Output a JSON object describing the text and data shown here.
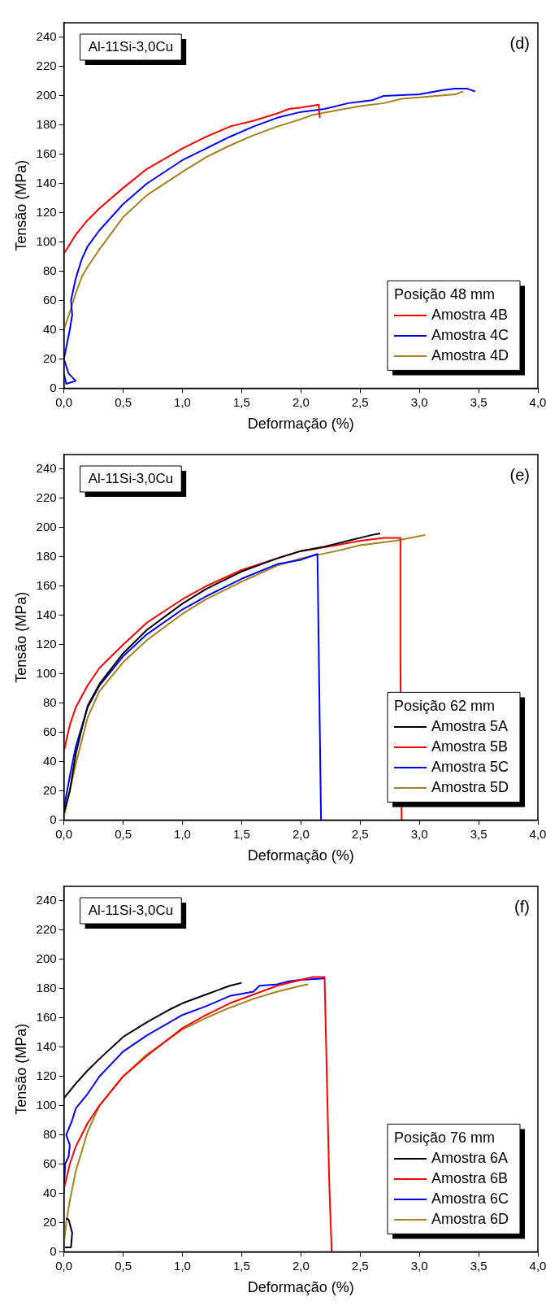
{
  "chart_data": [
    {
      "type": "line",
      "xlabel": "Deformação (%)",
      "ylabel": "Tensão (MPa)",
      "legend_title": "Posição 48 mm",
      "annotations": [
        "Al-11Si-3,0Cu",
        "(d)"
      ],
      "legend": "bottom right",
      "grid": false,
      "marker": "none",
      "line_style": "solid",
      "xlim": [
        0,
        4
      ],
      "xticks": [
        {
          "value": 0,
          "label": "0,0"
        },
        {
          "value": 0.5,
          "label": "0,5"
        },
        {
          "value": 1,
          "label": "1,0"
        },
        {
          "value": 1.5,
          "label": "1,5"
        },
        {
          "value": 2,
          "label": "2,0"
        },
        {
          "value": 2.5,
          "label": "2,5"
        },
        {
          "value": 3,
          "label": "3,0"
        },
        {
          "value": 3.5,
          "label": "3,5"
        },
        {
          "value": 4,
          "label": "4,0"
        }
      ],
      "ylim": [
        0,
        250
      ],
      "yticks": [
        0,
        20,
        40,
        60,
        80,
        100,
        120,
        140,
        160,
        180,
        200,
        220,
        240
      ],
      "series": [
        {
          "name": "Amostra 4B",
          "color": "#ff0000",
          "x": [
            0,
            0.1,
            0.2,
            0.3,
            0.5,
            0.7,
            1.0,
            1.2,
            1.4,
            1.6,
            1.8,
            1.9,
            2.0,
            2.15,
            2.16
          ],
          "values": [
            92,
            105,
            115,
            123,
            137,
            150,
            164,
            172,
            179,
            183,
            188,
            191,
            192,
            194,
            185
          ]
        },
        {
          "name": "Amostra 4C",
          "color": "#0000ff",
          "x": [
            0,
            0.02,
            0.1,
            0.04,
            0,
            0.05,
            0.07,
            0.06,
            0.1,
            0.15,
            0.2,
            0.3,
            0.5,
            0.7,
            1.0,
            1.2,
            1.4,
            1.6,
            1.8,
            2.0,
            2.2,
            2.4,
            2.6,
            2.7,
            3.0,
            3.2,
            3.3,
            3.4,
            3.47
          ],
          "values": [
            10,
            3,
            5,
            10,
            20,
            40,
            50,
            60,
            75,
            88,
            97,
            108,
            126,
            140,
            156,
            164,
            172,
            179,
            185,
            189,
            191,
            195,
            197,
            200,
            201,
            204,
            205,
            205,
            203
          ]
        },
        {
          "name": "Amostra 4D",
          "color": "#a8801f",
          "x": [
            0,
            0.05,
            0.1,
            0.15,
            0.2,
            0.3,
            0.5,
            0.7,
            1.0,
            1.2,
            1.4,
            1.6,
            1.8,
            2.0,
            2.1,
            2.3,
            2.5,
            2.7,
            2.85,
            3.0,
            3.3,
            3.37
          ],
          "values": [
            40,
            52,
            65,
            76,
            83,
            95,
            117,
            132,
            148,
            158,
            166,
            173,
            179,
            184,
            187,
            190,
            193,
            195,
            198,
            199,
            201,
            203
          ]
        }
      ]
    },
    {
      "type": "line",
      "xlabel": "Deformação (%)",
      "ylabel": "Tensão (MPa)",
      "legend_title": "Posição 62 mm",
      "annotations": [
        "Al-11Si-3,0Cu",
        "(e)"
      ],
      "legend": "bottom right",
      "grid": false,
      "marker": "none",
      "line_style": "solid",
      "xlim": [
        0,
        4
      ],
      "xticks": [
        {
          "value": 0,
          "label": "0,0"
        },
        {
          "value": 0.5,
          "label": "0,5"
        },
        {
          "value": 1,
          "label": "1,0"
        },
        {
          "value": 1.5,
          "label": "1,5"
        },
        {
          "value": 2,
          "label": "2,0"
        },
        {
          "value": 2.5,
          "label": "2,5"
        },
        {
          "value": 3,
          "label": "3,0"
        },
        {
          "value": 3.5,
          "label": "3,5"
        },
        {
          "value": 4,
          "label": "4,0"
        }
      ],
      "ylim": [
        0,
        250
      ],
      "yticks": [
        0,
        20,
        40,
        60,
        80,
        100,
        120,
        140,
        160,
        180,
        200,
        220,
        240
      ],
      "series": [
        {
          "name": "Amostra 5A",
          "color": "#000000",
          "x": [
            0,
            0.05,
            0.1,
            0.15,
            0.2,
            0.3,
            0.5,
            0.7,
            1.0,
            1.2,
            1.5,
            1.8,
            2.0,
            2.2,
            2.4,
            2.6,
            2.67
          ],
          "values": [
            5,
            20,
            45,
            62,
            78,
            93,
            114,
            130,
            148,
            158,
            170,
            179,
            184,
            187,
            191,
            195,
            196
          ]
        },
        {
          "name": "Amostra 5B",
          "color": "#ff0000",
          "x": [
            0,
            0.05,
            0.1,
            0.2,
            0.3,
            0.5,
            0.7,
            1.0,
            1.2,
            1.5,
            1.8,
            2.0,
            2.3,
            2.5,
            2.7,
            2.84,
            2.84,
            2.85
          ],
          "values": [
            47,
            65,
            77,
            92,
            104,
            120,
            135,
            151,
            160,
            171,
            179,
            184,
            188,
            191,
            193,
            193,
            110,
            0
          ]
        },
        {
          "name": "Amostra 5C",
          "color": "#0000ff",
          "x": [
            0,
            0.05,
            0.1,
            0.2,
            0.3,
            0.5,
            0.7,
            1.0,
            1.2,
            1.5,
            1.8,
            2.0,
            2.14,
            2.17
          ],
          "values": [
            8,
            30,
            50,
            77,
            92,
            112,
            127,
            144,
            153,
            165,
            175,
            178,
            182,
            0
          ]
        },
        {
          "name": "Amostra 5D",
          "color": "#a8801f",
          "x": [
            0,
            0.05,
            0.1,
            0.2,
            0.3,
            0.5,
            0.7,
            1.0,
            1.2,
            1.5,
            1.8,
            2.0,
            2.3,
            2.5,
            2.8,
            3.05
          ],
          "values": [
            2,
            20,
            38,
            70,
            88,
            108,
            123,
            141,
            151,
            163,
            174,
            179,
            184,
            188,
            191,
            195
          ]
        }
      ]
    },
    {
      "type": "line",
      "xlabel": "Deformação (%)",
      "ylabel": "Tensão (MPa)",
      "legend_title": "Posição 76 mm",
      "annotations": [
        "Al-11Si-3,0Cu",
        "(f)"
      ],
      "legend": "bottom right",
      "grid": false,
      "marker": "none",
      "line_style": "solid",
      "xlim": [
        0,
        4
      ],
      "xticks": [
        {
          "value": 0,
          "label": "0,0"
        },
        {
          "value": 0.5,
          "label": "0,5"
        },
        {
          "value": 1,
          "label": "1,0"
        },
        {
          "value": 1.5,
          "label": "1,5"
        },
        {
          "value": 2,
          "label": "2,0"
        },
        {
          "value": 2.5,
          "label": "2,5"
        },
        {
          "value": 3,
          "label": "3,0"
        },
        {
          "value": 3.5,
          "label": "3,5"
        },
        {
          "value": 4,
          "label": "4,0"
        }
      ],
      "ylim": [
        0,
        250
      ],
      "yticks": [
        0,
        20,
        40,
        60,
        80,
        100,
        120,
        140,
        160,
        180,
        200,
        220,
        240
      ],
      "series": [
        {
          "name": "Amostra 6A",
          "color": "#000000",
          "x": [
            0.01,
            0.06,
            0.07,
            0.04,
            0.02,
            0.01,
            0,
            0.1,
            0.2,
            0.3,
            0.5,
            0.7,
            0.9,
            1.0,
            1.2,
            1.3,
            1.4,
            1.5
          ],
          "values": [
            3,
            3,
            13,
            22,
            23,
            null,
            105,
            115,
            124,
            132,
            147,
            157,
            166,
            170,
            176,
            179,
            182,
            184
          ]
        },
        {
          "name": "Amostra 6B",
          "color": "#ff0000",
          "x": [
            0,
            0.05,
            0.1,
            0.2,
            0.3,
            0.5,
            0.7,
            1.0,
            1.2,
            1.4,
            1.6,
            1.8,
            2.0,
            2.1,
            2.2,
            2.24,
            2.26
          ],
          "values": [
            43,
            60,
            72,
            88,
            100,
            120,
            134,
            153,
            162,
            170,
            176,
            182,
            186,
            188,
            188,
            46,
            0
          ]
        },
        {
          "name": "Amostra 6C",
          "color": "#0000ff",
          "x": [
            0,
            0.01,
            0.04,
            0.05,
            0.02,
            0.07,
            0.1,
            0.2,
            0.3,
            0.5,
            0.7,
            1.0,
            1.2,
            1.4,
            1.6,
            1.65,
            1.8,
            1.9,
            2.0,
            2.2
          ],
          "values": [
            40,
            60,
            65,
            73,
            80,
            90,
            98,
            108,
            120,
            137,
            148,
            162,
            168,
            175,
            178,
            182,
            183,
            185,
            186,
            187
          ]
        },
        {
          "name": "Amostra 6D",
          "color": "#a8801f",
          "x": [
            0,
            0.02,
            0.05,
            0.1,
            0.2,
            0.3,
            0.5,
            0.7,
            1.0,
            1.2,
            1.4,
            1.6,
            1.8,
            2.0,
            2.06
          ],
          "values": [
            5,
            20,
            35,
            55,
            82,
            100,
            120,
            135,
            152,
            160,
            167,
            173,
            178,
            182,
            183
          ]
        }
      ]
    }
  ]
}
